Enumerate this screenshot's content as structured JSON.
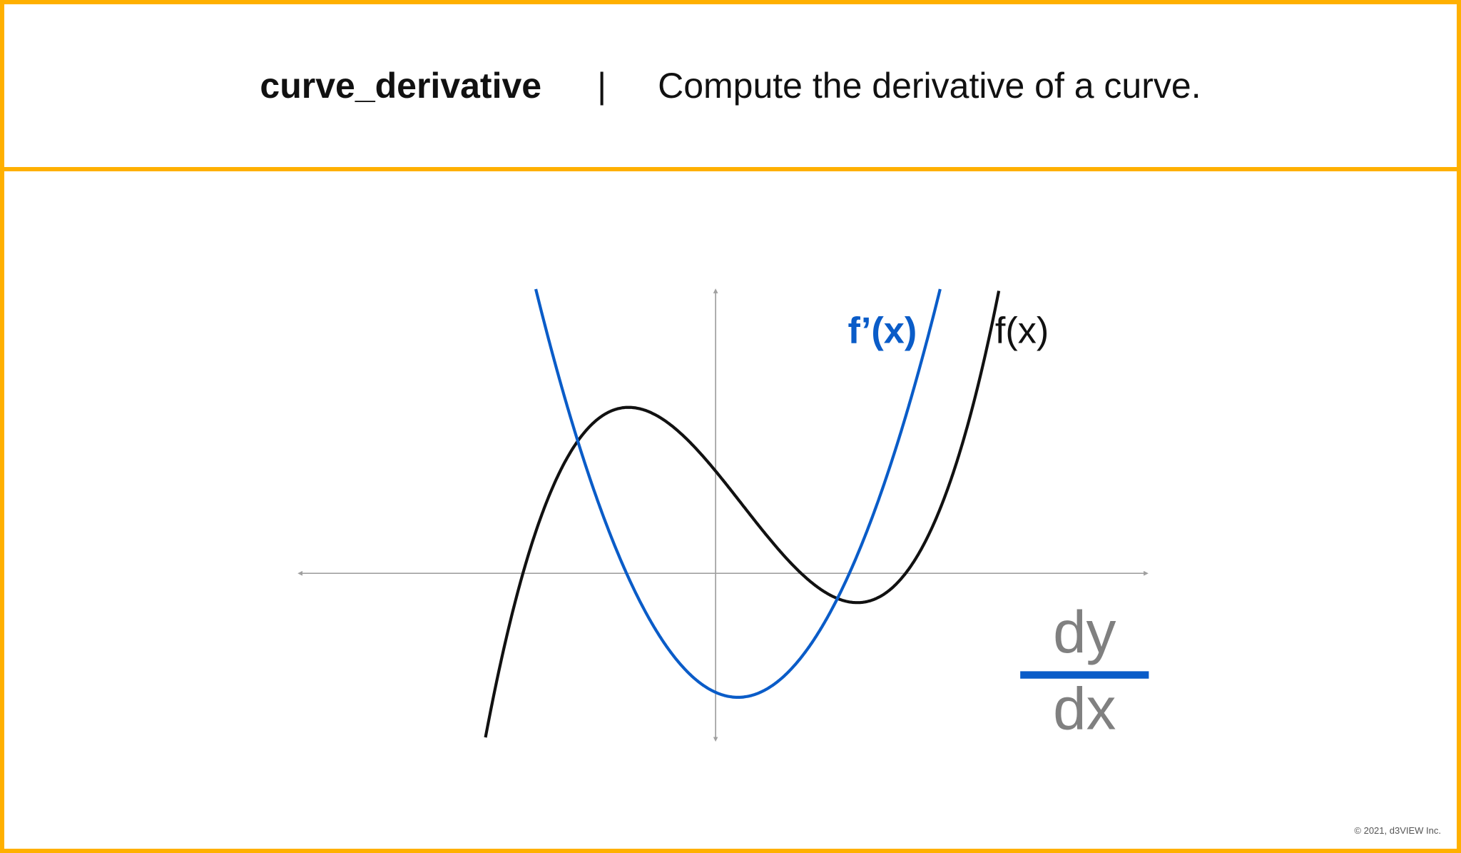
{
  "header": {
    "tool_name": "curve_derivative",
    "separator": "|",
    "description": "Compute the derivative of a curve."
  },
  "diagram": {
    "curves": [
      {
        "label": "f(x)",
        "color": "#111111",
        "kind": "cubic"
      },
      {
        "label": "f’(x)",
        "color": "#0A5CC8",
        "kind": "parabola"
      }
    ],
    "axis_color": "#A0A0A0",
    "fraction": {
      "numerator": "dy",
      "denominator": "dx",
      "text_color": "#808080",
      "bar_color": "#0A5CC8"
    }
  },
  "colors": {
    "border": "#FFB000"
  },
  "footer": {
    "copyright": "© 2021, d3VIEW Inc."
  }
}
